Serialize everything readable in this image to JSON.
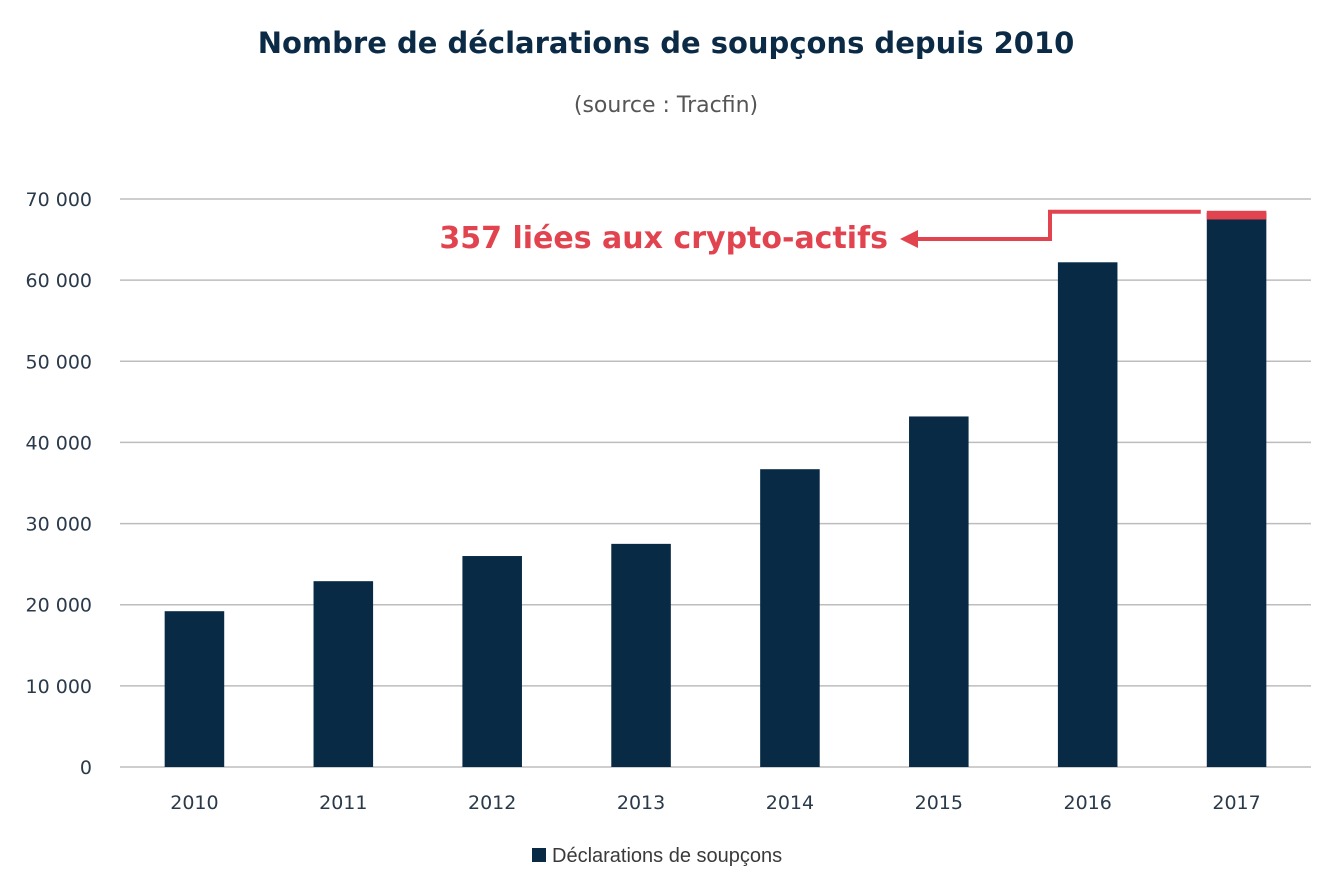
{
  "chart_data": {
    "type": "bar",
    "title": "Nombre de déclarations de soupçons depuis 2010",
    "subtitle": "(source : Tracfin)",
    "categories": [
      "2010",
      "2011",
      "2012",
      "2013",
      "2014",
      "2015",
      "2016",
      "2017"
    ],
    "series": [
      {
        "name": "Déclarations de soupçons",
        "values": [
          19200,
          22900,
          26000,
          27500,
          36700,
          43200,
          62200,
          68300
        ]
      }
    ],
    "highlight": {
      "category": "2017",
      "value": 357,
      "label": "357 liées aux crypto-actifs"
    },
    "ylim": [
      0,
      70000
    ],
    "yticks": [
      0,
      10000,
      20000,
      30000,
      40000,
      50000,
      60000,
      70000
    ],
    "ytick_labels": [
      "0",
      "10 000",
      "20 000",
      "30 000",
      "40 000",
      "50 000",
      "60 000",
      "70 000"
    ],
    "xlabel": "",
    "ylabel": "",
    "grid": true,
    "legend": "bottom-center",
    "colors": {
      "bar": "#082a45",
      "highlight": "#e2444f",
      "grid": "#bdbdbd",
      "title": "#0b2a45"
    }
  }
}
